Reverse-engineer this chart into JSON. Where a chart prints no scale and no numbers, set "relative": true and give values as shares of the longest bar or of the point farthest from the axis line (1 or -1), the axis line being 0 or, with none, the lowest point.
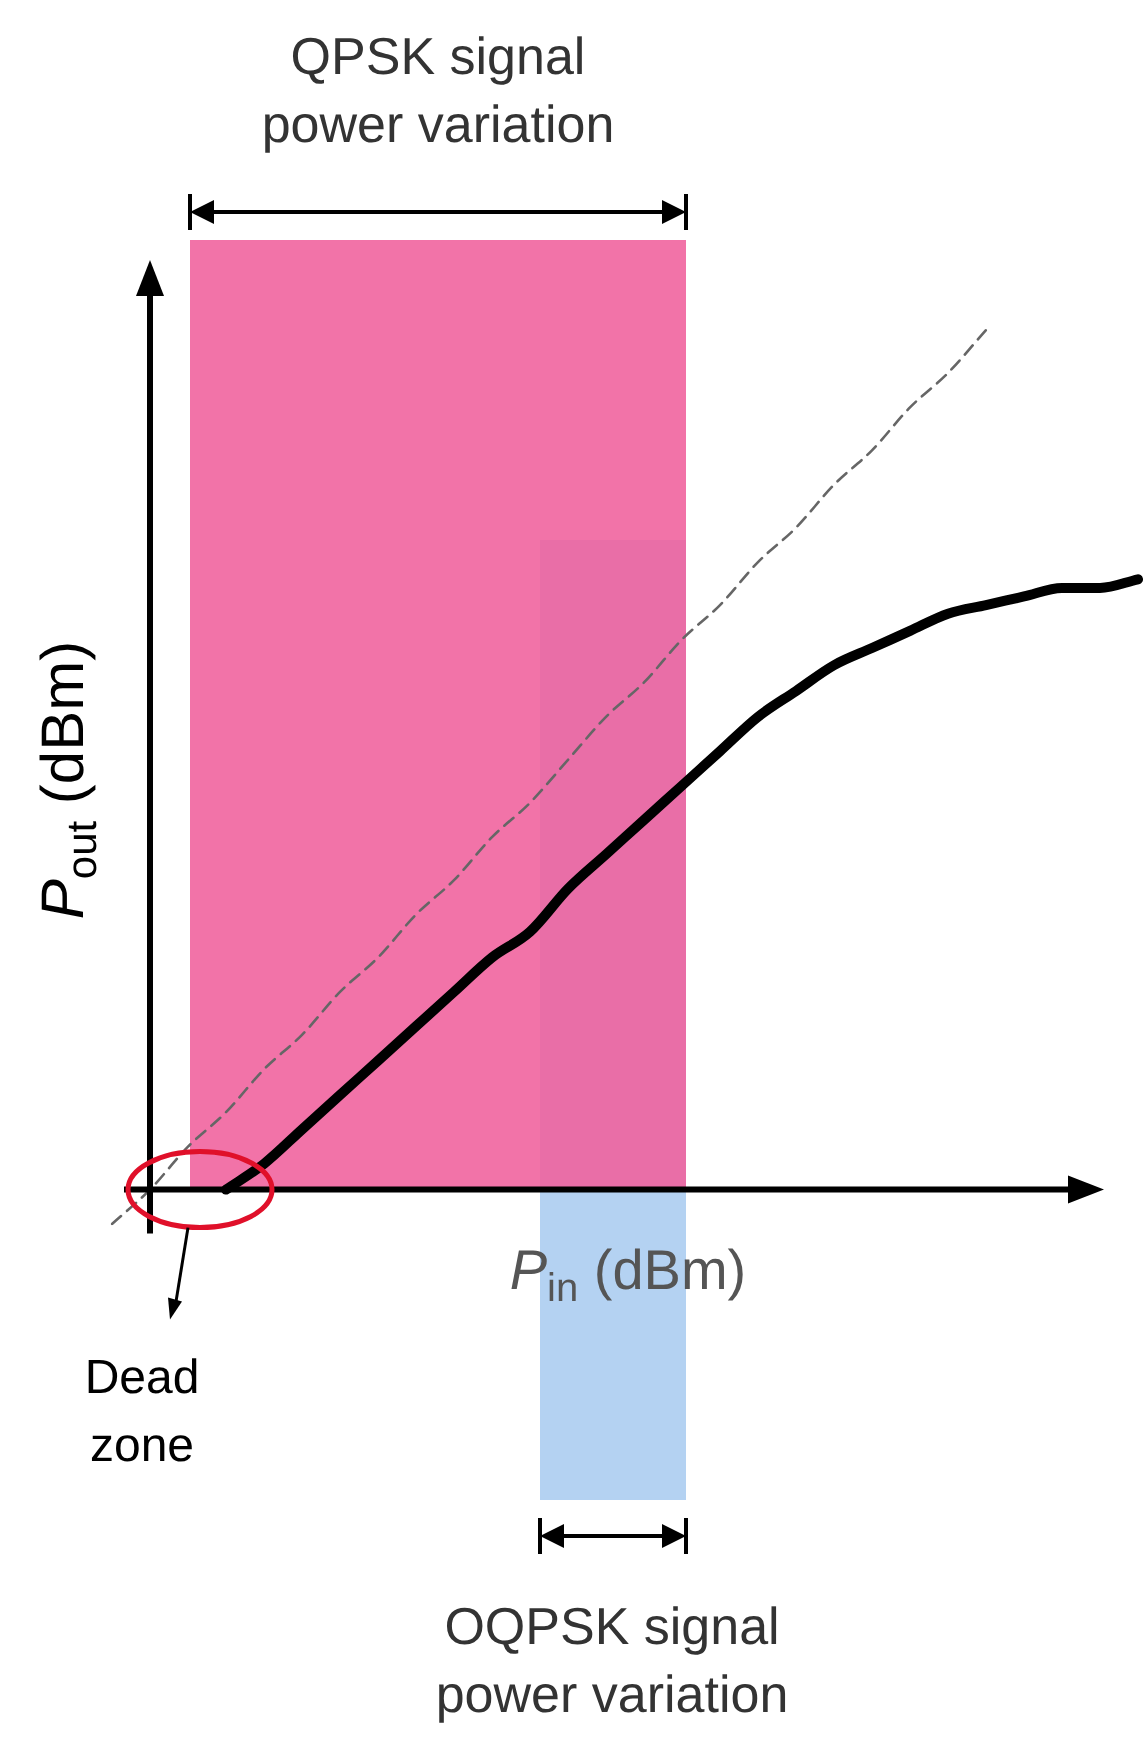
{
  "chart_data": {
    "type": "line",
    "relative": true,
    "ylabel": "P$_{out}$ (dBm)",
    "xlabel": "P$_{in}$ (dBm)",
    "legend": false,
    "marker": "none",
    "categories": [
      null,
      null,
      null,
      null,
      null,
      null,
      null,
      null,
      null,
      null,
      null,
      null,
      null,
      null,
      null,
      null,
      null,
      null,
      null,
      null,
      null,
      null,
      null,
      null,
      null,
      null,
      null,
      null
    ],
    "series": [
      {
        "color": "#000000",
        "line_style": "solid",
        "values": [
          null,
          null,
          null,
          0,
          0.03,
          0.07,
          0.11,
          0.15,
          0.19,
          0.23,
          0.27,
          0.3,
          0.35,
          0.39,
          0.43,
          0.47,
          0.51,
          0.55,
          0.58,
          0.61,
          0.63,
          0.65,
          0.67,
          0.68,
          0.69,
          0.7,
          0.7,
          0.71
        ]
      },
      {
        "color": "#666666",
        "line_style": "dashed",
        "values": [
          -0.04,
          0,
          0.05,
          0.09,
          0.14,
          0.18,
          0.23,
          0.27,
          0.32,
          0.36,
          0.41,
          0.45,
          0.5,
          0.55,
          0.59,
          0.64,
          0.68,
          0.73,
          0.77,
          0.82,
          0.86,
          0.91,
          0.95,
          1,
          null,
          null,
          null,
          null
        ]
      }
    ],
    "annotations": [
      "QPSK signal power variation",
      "OQPSK signal power variation",
      "Dead zone"
    ]
  }
}
